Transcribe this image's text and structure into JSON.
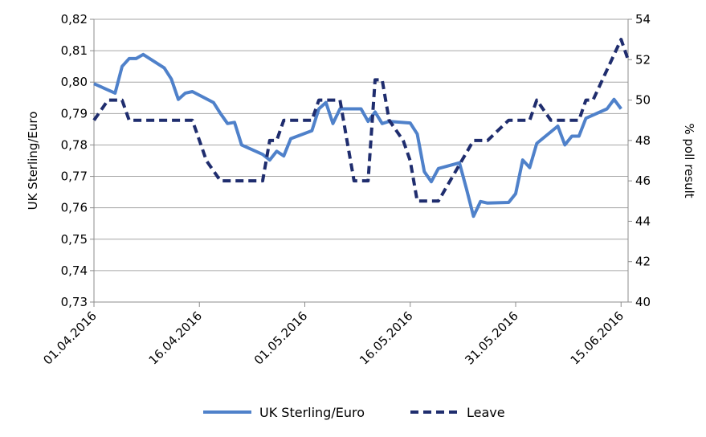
{
  "chart_data": {
    "type": "line",
    "title": "",
    "xlabel": "",
    "ylabel_left": "UK Sterling/Euro",
    "ylabel_right": "% poll result",
    "grid": "horizontal",
    "legend_position": "bottom",
    "x_ticks": [
      "01.04.2016",
      "16.04.2016",
      "01.05.2016",
      "16.05.2016",
      "31.05.2016",
      "15.06.2016"
    ],
    "x_range": [
      "2016-04-01",
      "2016-06-16"
    ],
    "y_left": {
      "range": [
        0.73,
        0.82
      ],
      "ticks": [
        "0,73",
        "0,74",
        "0,75",
        "0,76",
        "0,77",
        "0,78",
        "0,79",
        "0,80",
        "0,81",
        "0,82"
      ]
    },
    "y_right": {
      "range": [
        40,
        54
      ],
      "ticks": [
        "40",
        "42",
        "44",
        "46",
        "48",
        "50",
        "52",
        "54"
      ]
    },
    "series": [
      {
        "name": "UK Sterling/Euro",
        "axis": "left",
        "color": "#4F81CA",
        "style": "solid",
        "points": [
          [
            "2016-04-01",
            0.7995
          ],
          [
            "2016-04-04",
            0.7965
          ],
          [
            "2016-04-05",
            0.805
          ],
          [
            "2016-04-06",
            0.8075
          ],
          [
            "2016-04-07",
            0.8075
          ],
          [
            "2016-04-08",
            0.8088
          ],
          [
            "2016-04-11",
            0.8045
          ],
          [
            "2016-04-12",
            0.801
          ],
          [
            "2016-04-13",
            0.7945
          ],
          [
            "2016-04-14",
            0.7965
          ],
          [
            "2016-04-15",
            0.797
          ],
          [
            "2016-04-18",
            0.7935
          ],
          [
            "2016-04-19",
            0.79
          ],
          [
            "2016-04-20",
            0.7868
          ],
          [
            "2016-04-21",
            0.7872
          ],
          [
            "2016-04-22",
            0.78
          ],
          [
            "2016-04-25",
            0.777
          ],
          [
            "2016-04-26",
            0.7752
          ],
          [
            "2016-04-27",
            0.778
          ],
          [
            "2016-04-28",
            0.7765
          ],
          [
            "2016-04-29",
            0.782
          ],
          [
            "2016-05-02",
            0.7845
          ],
          [
            "2016-05-03",
            0.7915
          ],
          [
            "2016-05-04",
            0.7935
          ],
          [
            "2016-05-05",
            0.7868
          ],
          [
            "2016-05-06",
            0.7915
          ],
          [
            "2016-05-09",
            0.7915
          ],
          [
            "2016-05-10",
            0.7875
          ],
          [
            "2016-05-11",
            0.7905
          ],
          [
            "2016-05-12",
            0.7868
          ],
          [
            "2016-05-13",
            0.7875
          ],
          [
            "2016-05-16",
            0.787
          ],
          [
            "2016-05-17",
            0.7835
          ],
          [
            "2016-05-18",
            0.7715
          ],
          [
            "2016-05-19",
            0.7683
          ],
          [
            "2016-05-20",
            0.7725
          ],
          [
            "2016-05-23",
            0.7743
          ],
          [
            "2016-05-24",
            0.766
          ],
          [
            "2016-05-25",
            0.7573
          ],
          [
            "2016-05-26",
            0.762
          ],
          [
            "2016-05-27",
            0.7615
          ],
          [
            "2016-05-30",
            0.7617
          ],
          [
            "2016-05-31",
            0.7645
          ],
          [
            "2016-06-01",
            0.7752
          ],
          [
            "2016-06-02",
            0.7728
          ],
          [
            "2016-06-03",
            0.7805
          ],
          [
            "2016-06-06",
            0.786
          ],
          [
            "2016-06-07",
            0.78
          ],
          [
            "2016-06-08",
            0.7828
          ],
          [
            "2016-06-09",
            0.7828
          ],
          [
            "2016-06-10",
            0.7885
          ],
          [
            "2016-06-13",
            0.7915
          ],
          [
            "2016-06-14",
            0.7945
          ],
          [
            "2016-06-15",
            0.7915
          ]
        ]
      },
      {
        "name": "Leave",
        "axis": "right",
        "color": "#1F2D6E",
        "style": "dashed",
        "points": [
          [
            "2016-04-01",
            49
          ],
          [
            "2016-04-02",
            49.5
          ],
          [
            "2016-04-03",
            50
          ],
          [
            "2016-04-05",
            50
          ],
          [
            "2016-04-06",
            49
          ],
          [
            "2016-04-15",
            49
          ],
          [
            "2016-04-16",
            48
          ],
          [
            "2016-04-17",
            47
          ],
          [
            "2016-04-19",
            46
          ],
          [
            "2016-04-25",
            46
          ],
          [
            "2016-04-26",
            48
          ],
          [
            "2016-04-27",
            48
          ],
          [
            "2016-04-28",
            49
          ],
          [
            "2016-05-02",
            49
          ],
          [
            "2016-05-03",
            50
          ],
          [
            "2016-05-06",
            50
          ],
          [
            "2016-05-07",
            48
          ],
          [
            "2016-05-08",
            46
          ],
          [
            "2016-05-10",
            46
          ],
          [
            "2016-05-11",
            51
          ],
          [
            "2016-05-12",
            51
          ],
          [
            "2016-05-13",
            49
          ],
          [
            "2016-05-15",
            48
          ],
          [
            "2016-05-16",
            47
          ],
          [
            "2016-05-17",
            45
          ],
          [
            "2016-05-19",
            45
          ],
          [
            "2016-05-20",
            45
          ],
          [
            "2016-05-25",
            48
          ],
          [
            "2016-05-26",
            48
          ],
          [
            "2016-05-27",
            48
          ],
          [
            "2016-05-30",
            49
          ],
          [
            "2016-06-02",
            49
          ],
          [
            "2016-06-03",
            50
          ],
          [
            "2016-06-05",
            49
          ],
          [
            "2016-06-06",
            49
          ],
          [
            "2016-06-07",
            49
          ],
          [
            "2016-06-08",
            49
          ],
          [
            "2016-06-09",
            49
          ],
          [
            "2016-06-10",
            50
          ],
          [
            "2016-06-11",
            50
          ],
          [
            "2016-06-13",
            51.5
          ],
          [
            "2016-06-15",
            53
          ],
          [
            "2016-06-16",
            52
          ]
        ]
      }
    ]
  }
}
